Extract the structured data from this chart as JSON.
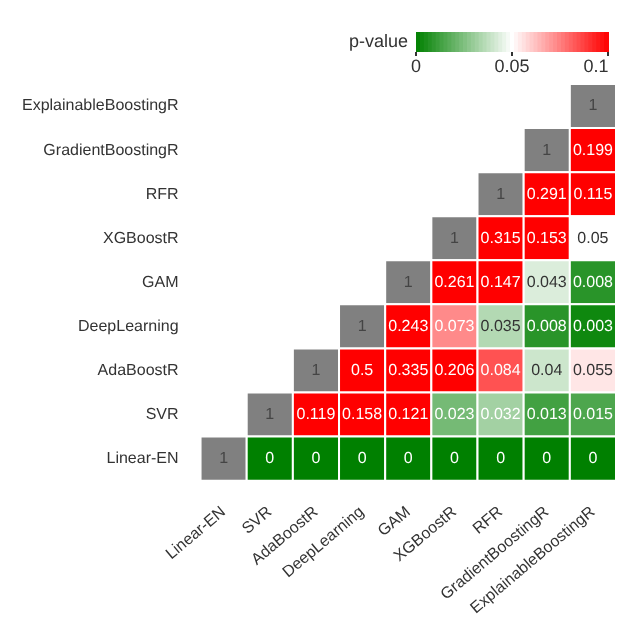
{
  "chart_data": {
    "type": "heatmap",
    "clabel": "p-value",
    "categories": [
      "Linear-EN",
      "SVR",
      "AdaBoostR",
      "DeepLearning",
      "GAM",
      "XGBoostR",
      "RFR",
      "GradientBoostingR",
      "ExplainableBoostingR"
    ],
    "y_categories": [
      "ExplainableBoostingR",
      "GradientBoostingR",
      "RFR",
      "XGBoostR",
      "GAM",
      "DeepLearning",
      "AdaBoostR",
      "SVR",
      "Linear-EN"
    ],
    "cells": [
      [
        null,
        null,
        null,
        null,
        null,
        null,
        null,
        null,
        null
      ],
      [
        null,
        null,
        null,
        null,
        null,
        null,
        null,
        null,
        0.199
      ],
      [
        null,
        null,
        null,
        null,
        null,
        null,
        null,
        0.291,
        0.115
      ],
      [
        null,
        null,
        null,
        null,
        null,
        null,
        0.315,
        0.153,
        0.05
      ],
      [
        null,
        null,
        null,
        null,
        null,
        0.261,
        0.147,
        0.043,
        0.008
      ],
      [
        null,
        null,
        null,
        null,
        0.243,
        0.073,
        0.035,
        0.008,
        0.003
      ],
      [
        null,
        null,
        null,
        0.5,
        0.335,
        0.206,
        0.084,
        0.04,
        0.055
      ],
      [
        null,
        null,
        0.119,
        0.158,
        0.121,
        0.023,
        0.032,
        0.013,
        0.015
      ],
      [
        null,
        0,
        0,
        0,
        0,
        0,
        0,
        0,
        0
      ]
    ],
    "cell_labels": [
      [
        null,
        null,
        null,
        null,
        null,
        null,
        null,
        null,
        "1"
      ],
      [
        null,
        null,
        null,
        null,
        null,
        null,
        null,
        "1",
        "0.199"
      ],
      [
        null,
        null,
        null,
        null,
        null,
        null,
        "1",
        "0.291",
        "0.115"
      ],
      [
        null,
        null,
        null,
        null,
        null,
        "1",
        "0.315",
        "0.153",
        "0.05"
      ],
      [
        null,
        null,
        null,
        null,
        "1",
        "0.261",
        "0.147",
        "0.043",
        "0.008"
      ],
      [
        null,
        null,
        null,
        "1",
        "0.243",
        "0.073",
        "0.035",
        "0.008",
        "0.003"
      ],
      [
        null,
        null,
        "1",
        "0.5",
        "0.335",
        "0.206",
        "0.084",
        "0.04",
        "0.055"
      ],
      [
        null,
        "1",
        "0.119",
        "0.158",
        "0.121",
        "0.023",
        "0.032",
        "0.013",
        "0.015"
      ],
      [
        "1",
        "0",
        "0",
        "0",
        "0",
        "0",
        "0",
        "0",
        "0"
      ]
    ],
    "clim": [
      0,
      0.1
    ],
    "cticks": [
      0,
      0.05,
      0.1
    ]
  }
}
